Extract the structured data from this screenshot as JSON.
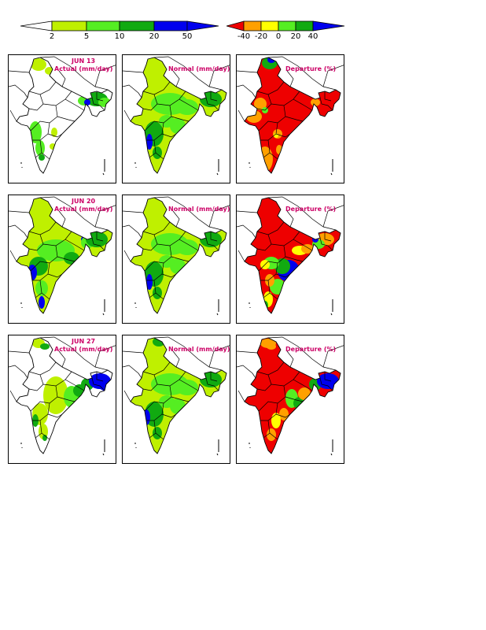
{
  "colorbars": {
    "rainfall": {
      "ticks": [
        "2",
        "5",
        "10",
        "20",
        "50"
      ],
      "colors": [
        "#ffffff",
        "#bff000",
        "#55ee22",
        "#11aa11",
        "#0000ee"
      ]
    },
    "departure": {
      "ticks": [
        "-40",
        "-20",
        "0",
        "20",
        "40"
      ],
      "colors": [
        "#ee0000",
        "#ffa000",
        "#ffff00",
        "#55ee22",
        "#11aa11",
        "#0000ee"
      ]
    }
  },
  "rows": [
    {
      "date": "JUN 13",
      "panels": [
        {
          "label": "Actual (mm/day)",
          "kind": "actual"
        },
        {
          "label": "Normal (mm/day)",
          "kind": "normal"
        },
        {
          "label": "Departure (%)",
          "kind": "departure"
        }
      ]
    },
    {
      "date": "JUN 20",
      "panels": [
        {
          "label": "Actual (mm/day)",
          "kind": "actual"
        },
        {
          "label": "Normal (mm/day)",
          "kind": "normal"
        },
        {
          "label": "Departure (%)",
          "kind": "departure"
        }
      ]
    },
    {
      "date": "JUN 27",
      "panels": [
        {
          "label": "Actual (mm/day)",
          "kind": "actual"
        },
        {
          "label": "Normal (mm/day)",
          "kind": "normal"
        },
        {
          "label": "Departure (%)",
          "kind": "departure"
        }
      ]
    }
  ]
}
